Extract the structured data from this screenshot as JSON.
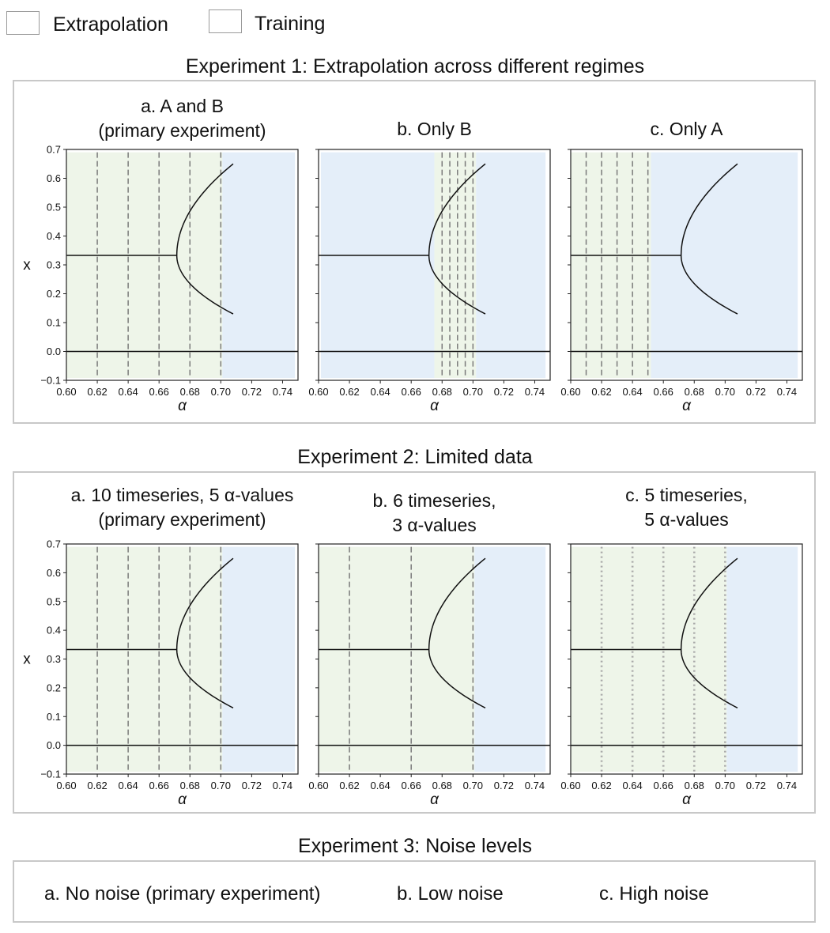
{
  "legend": {
    "items": [
      {
        "label": "Extrapolation",
        "color": "#e4eef9"
      },
      {
        "label": "Training",
        "color": "#eef5e9"
      }
    ]
  },
  "experiments": {
    "exp1": {
      "title": "Experiment 1: Extrapolation across different regimes"
    },
    "exp2": {
      "title": "Experiment 2: Limited data"
    },
    "exp3": {
      "title": "Experiment 3: Noise levels",
      "labels": [
        "a. No noise (primary experiment)",
        "b. Low noise",
        "c. High noise"
      ]
    }
  },
  "chart_data": [
    {
      "type": "line",
      "id": "exp1-a",
      "title_lines": [
        "a. A and B",
        "(primary experiment)"
      ],
      "xlabel": "α",
      "ylabel": "x",
      "xlim": [
        0.6,
        0.75
      ],
      "ylim": [
        -0.1,
        0.7
      ],
      "xticks": [
        "0.60",
        "0.62",
        "0.64",
        "0.66",
        "0.68",
        "0.70",
        "0.72",
        "0.74"
      ],
      "yticks": [
        "−0.1",
        "0.0",
        "0.1",
        "0.2",
        "0.3",
        "0.4",
        "0.5",
        "0.6",
        "0.7"
      ],
      "regions": [
        {
          "kind": "training",
          "x": [
            0.6,
            0.701
          ]
        },
        {
          "kind": "extrapolation",
          "x": [
            0.701,
            0.748
          ]
        }
      ],
      "vlines": [
        0.62,
        0.64,
        0.66,
        0.68,
        0.7
      ],
      "vline_style": "dashed",
      "curve": {
        "fixed_value": 0.333,
        "bifurcation_alpha": 0.6715,
        "branch_end_alpha": 0.708,
        "upper_end": 0.65,
        "lower_end": 0.13,
        "zero_line": 0.0
      }
    },
    {
      "type": "line",
      "id": "exp1-b",
      "title_lines": [
        "b. Only B"
      ],
      "xlabel": "α",
      "ylabel": "",
      "xlim": [
        0.6,
        0.75
      ],
      "ylim": [
        -0.1,
        0.7
      ],
      "xticks": [
        "0.60",
        "0.62",
        "0.64",
        "0.66",
        "0.68",
        "0.70",
        "0.72",
        "0.74"
      ],
      "yticks": [],
      "regions": [
        {
          "kind": "extrapolation",
          "x": [
            0.6015,
            0.675
          ]
        },
        {
          "kind": "training",
          "x": [
            0.675,
            0.702
          ]
        },
        {
          "kind": "extrapolation",
          "x": [
            0.702,
            0.747
          ]
        }
      ],
      "vlines": [
        0.68,
        0.685,
        0.69,
        0.695,
        0.7
      ],
      "vline_style": "dashed",
      "curve": {
        "fixed_value": 0.333,
        "bifurcation_alpha": 0.6715,
        "branch_end_alpha": 0.708,
        "upper_end": 0.65,
        "lower_end": 0.13,
        "zero_line": 0.0
      }
    },
    {
      "type": "line",
      "id": "exp1-c",
      "title_lines": [
        "c. Only A"
      ],
      "xlabel": "α",
      "ylabel": "",
      "xlim": [
        0.6,
        0.75
      ],
      "ylim": [
        -0.1,
        0.7
      ],
      "xticks": [
        "0.60",
        "0.62",
        "0.64",
        "0.66",
        "0.68",
        "0.70",
        "0.72",
        "0.74"
      ],
      "yticks": [],
      "regions": [
        {
          "kind": "training",
          "x": [
            0.6,
            0.652
          ]
        },
        {
          "kind": "extrapolation",
          "x": [
            0.652,
            0.747
          ]
        }
      ],
      "vlines": [
        0.61,
        0.62,
        0.63,
        0.64,
        0.65
      ],
      "vline_style": "dashed",
      "curve": {
        "fixed_value": 0.333,
        "bifurcation_alpha": 0.6715,
        "branch_end_alpha": 0.708,
        "upper_end": 0.65,
        "lower_end": 0.13,
        "zero_line": 0.0
      }
    },
    {
      "type": "line",
      "id": "exp2-a",
      "title_lines": [
        "a. 10 timeseries, 5 α-values",
        "(primary experiment)"
      ],
      "xlabel": "α",
      "ylabel": "x",
      "xlim": [
        0.6,
        0.75
      ],
      "ylim": [
        -0.1,
        0.7
      ],
      "xticks": [
        "0.60",
        "0.62",
        "0.64",
        "0.66",
        "0.68",
        "0.70",
        "0.72",
        "0.74"
      ],
      "yticks": [
        "−0.1",
        "0.0",
        "0.1",
        "0.2",
        "0.3",
        "0.4",
        "0.5",
        "0.6",
        "0.7"
      ],
      "regions": [
        {
          "kind": "training",
          "x": [
            0.6,
            0.701
          ]
        },
        {
          "kind": "extrapolation",
          "x": [
            0.701,
            0.748
          ]
        }
      ],
      "vlines": [
        0.62,
        0.64,
        0.66,
        0.68,
        0.7
      ],
      "vline_style": "dashed",
      "curve": {
        "fixed_value": 0.333,
        "bifurcation_alpha": 0.6715,
        "branch_end_alpha": 0.708,
        "upper_end": 0.65,
        "lower_end": 0.13,
        "zero_line": 0.0
      }
    },
    {
      "type": "line",
      "id": "exp2-b",
      "title_lines": [
        "b. 6 timeseries,",
        "3 α-values"
      ],
      "xlabel": "α",
      "ylabel": "",
      "xlim": [
        0.6,
        0.75
      ],
      "ylim": [
        -0.1,
        0.7
      ],
      "xticks": [
        "0.60",
        "0.62",
        "0.64",
        "0.66",
        "0.68",
        "0.70",
        "0.72",
        "0.74"
      ],
      "yticks": [],
      "regions": [
        {
          "kind": "training",
          "x": [
            0.6,
            0.701
          ]
        },
        {
          "kind": "extrapolation",
          "x": [
            0.701,
            0.747
          ]
        }
      ],
      "vlines": [
        0.62,
        0.66,
        0.7
      ],
      "vline_style": "dashed",
      "curve": {
        "fixed_value": 0.333,
        "bifurcation_alpha": 0.6715,
        "branch_end_alpha": 0.708,
        "upper_end": 0.65,
        "lower_end": 0.13,
        "zero_line": 0.0
      }
    },
    {
      "type": "line",
      "id": "exp2-c",
      "title_lines": [
        "c. 5 timeseries,",
        "5 α-values"
      ],
      "xlabel": "α",
      "ylabel": "",
      "xlim": [
        0.6,
        0.75
      ],
      "ylim": [
        -0.1,
        0.7
      ],
      "xticks": [
        "0.60",
        "0.62",
        "0.64",
        "0.66",
        "0.68",
        "0.70",
        "0.72",
        "0.74"
      ],
      "yticks": [],
      "regions": [
        {
          "kind": "training",
          "x": [
            0.6,
            0.701
          ]
        },
        {
          "kind": "extrapolation",
          "x": [
            0.701,
            0.747
          ]
        }
      ],
      "vlines": [
        0.62,
        0.64,
        0.66,
        0.68,
        0.7
      ],
      "vline_style": "dotted",
      "curve": {
        "fixed_value": 0.333,
        "bifurcation_alpha": 0.6715,
        "branch_end_alpha": 0.708,
        "upper_end": 0.65,
        "lower_end": 0.13,
        "zero_line": 0.0
      }
    }
  ]
}
